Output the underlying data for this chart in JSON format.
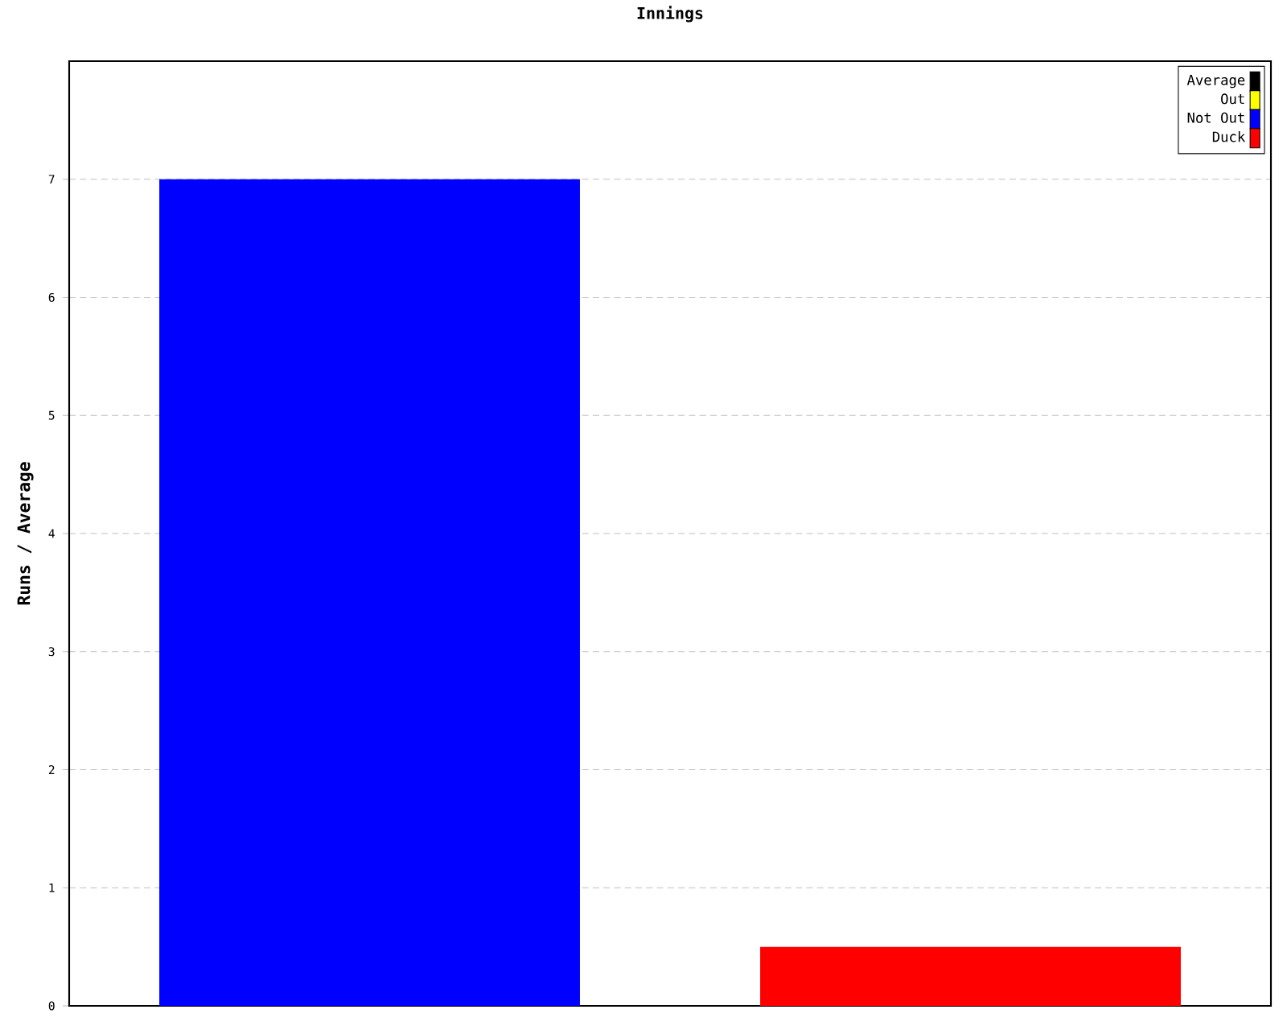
{
  "chart_data": {
    "type": "bar",
    "title": "Innings",
    "ylabel": "Runs / Average",
    "categories": [
      null,
      null
    ],
    "series": [
      {
        "name": "Average",
        "color": "#000000",
        "values": [
          null,
          null
        ]
      },
      {
        "name": "Out",
        "color": "#ffff00",
        "values": [
          null,
          null
        ]
      },
      {
        "name": "Not Out",
        "color": "#0000ff",
        "values": [
          7,
          null
        ]
      },
      {
        "name": "Duck",
        "color": "#ff0000",
        "values": [
          null,
          0.5
        ]
      }
    ],
    "ylim": [
      0,
      8
    ],
    "yticks": [
      0,
      1,
      2,
      3,
      4,
      5,
      6,
      7
    ],
    "grid": "y",
    "legend": "top right"
  }
}
